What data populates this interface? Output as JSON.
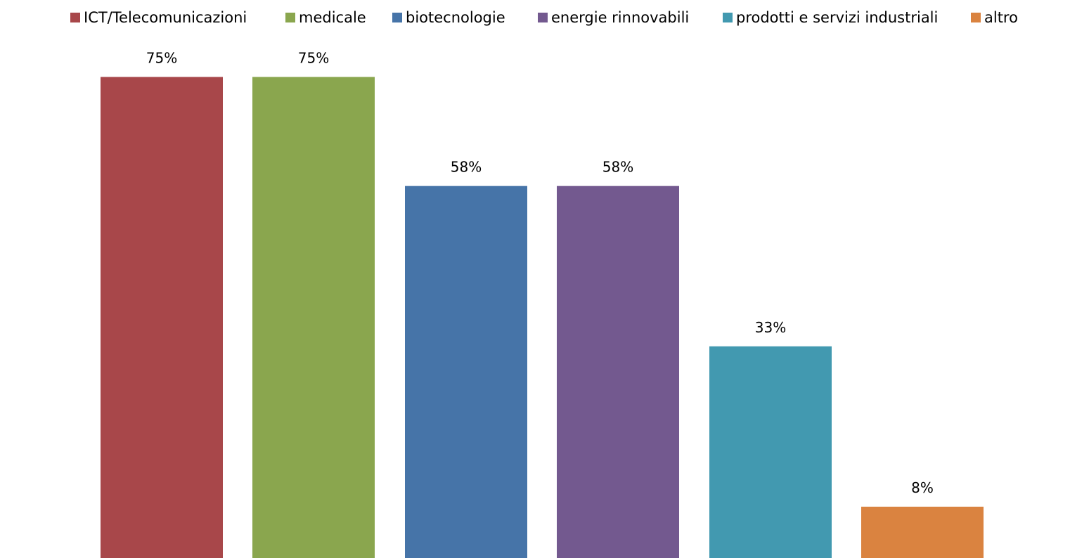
{
  "chart_data": {
    "type": "bar",
    "categories": [
      "ICT/Telecomunicazioni",
      "medicale",
      "biotecnologie",
      "energie rinnovabili",
      "prodotti e servizi industriali",
      "altro"
    ],
    "series": [
      {
        "values": [
          75,
          75,
          58,
          58,
          33,
          8
        ],
        "data_labels": [
          "75%",
          "75%",
          "58%",
          "58%",
          "33%",
          "8%"
        ],
        "colors": [
          "#A8474A",
          "#8AA64E",
          "#4674A8",
          "#73598F",
          "#4299B0",
          "#DA8340"
        ]
      }
    ],
    "title": "",
    "xlabel": "",
    "ylabel": "",
    "ylim": [
      0,
      87
    ],
    "grid": false,
    "axes_visible": false,
    "legend": {
      "placement": "top",
      "entries": [
        "ICT/Telecomunicazioni",
        "medicale",
        "biotecnologie",
        "energie rinnovabili",
        "prodotti e servizi industriali",
        "altro"
      ]
    }
  }
}
